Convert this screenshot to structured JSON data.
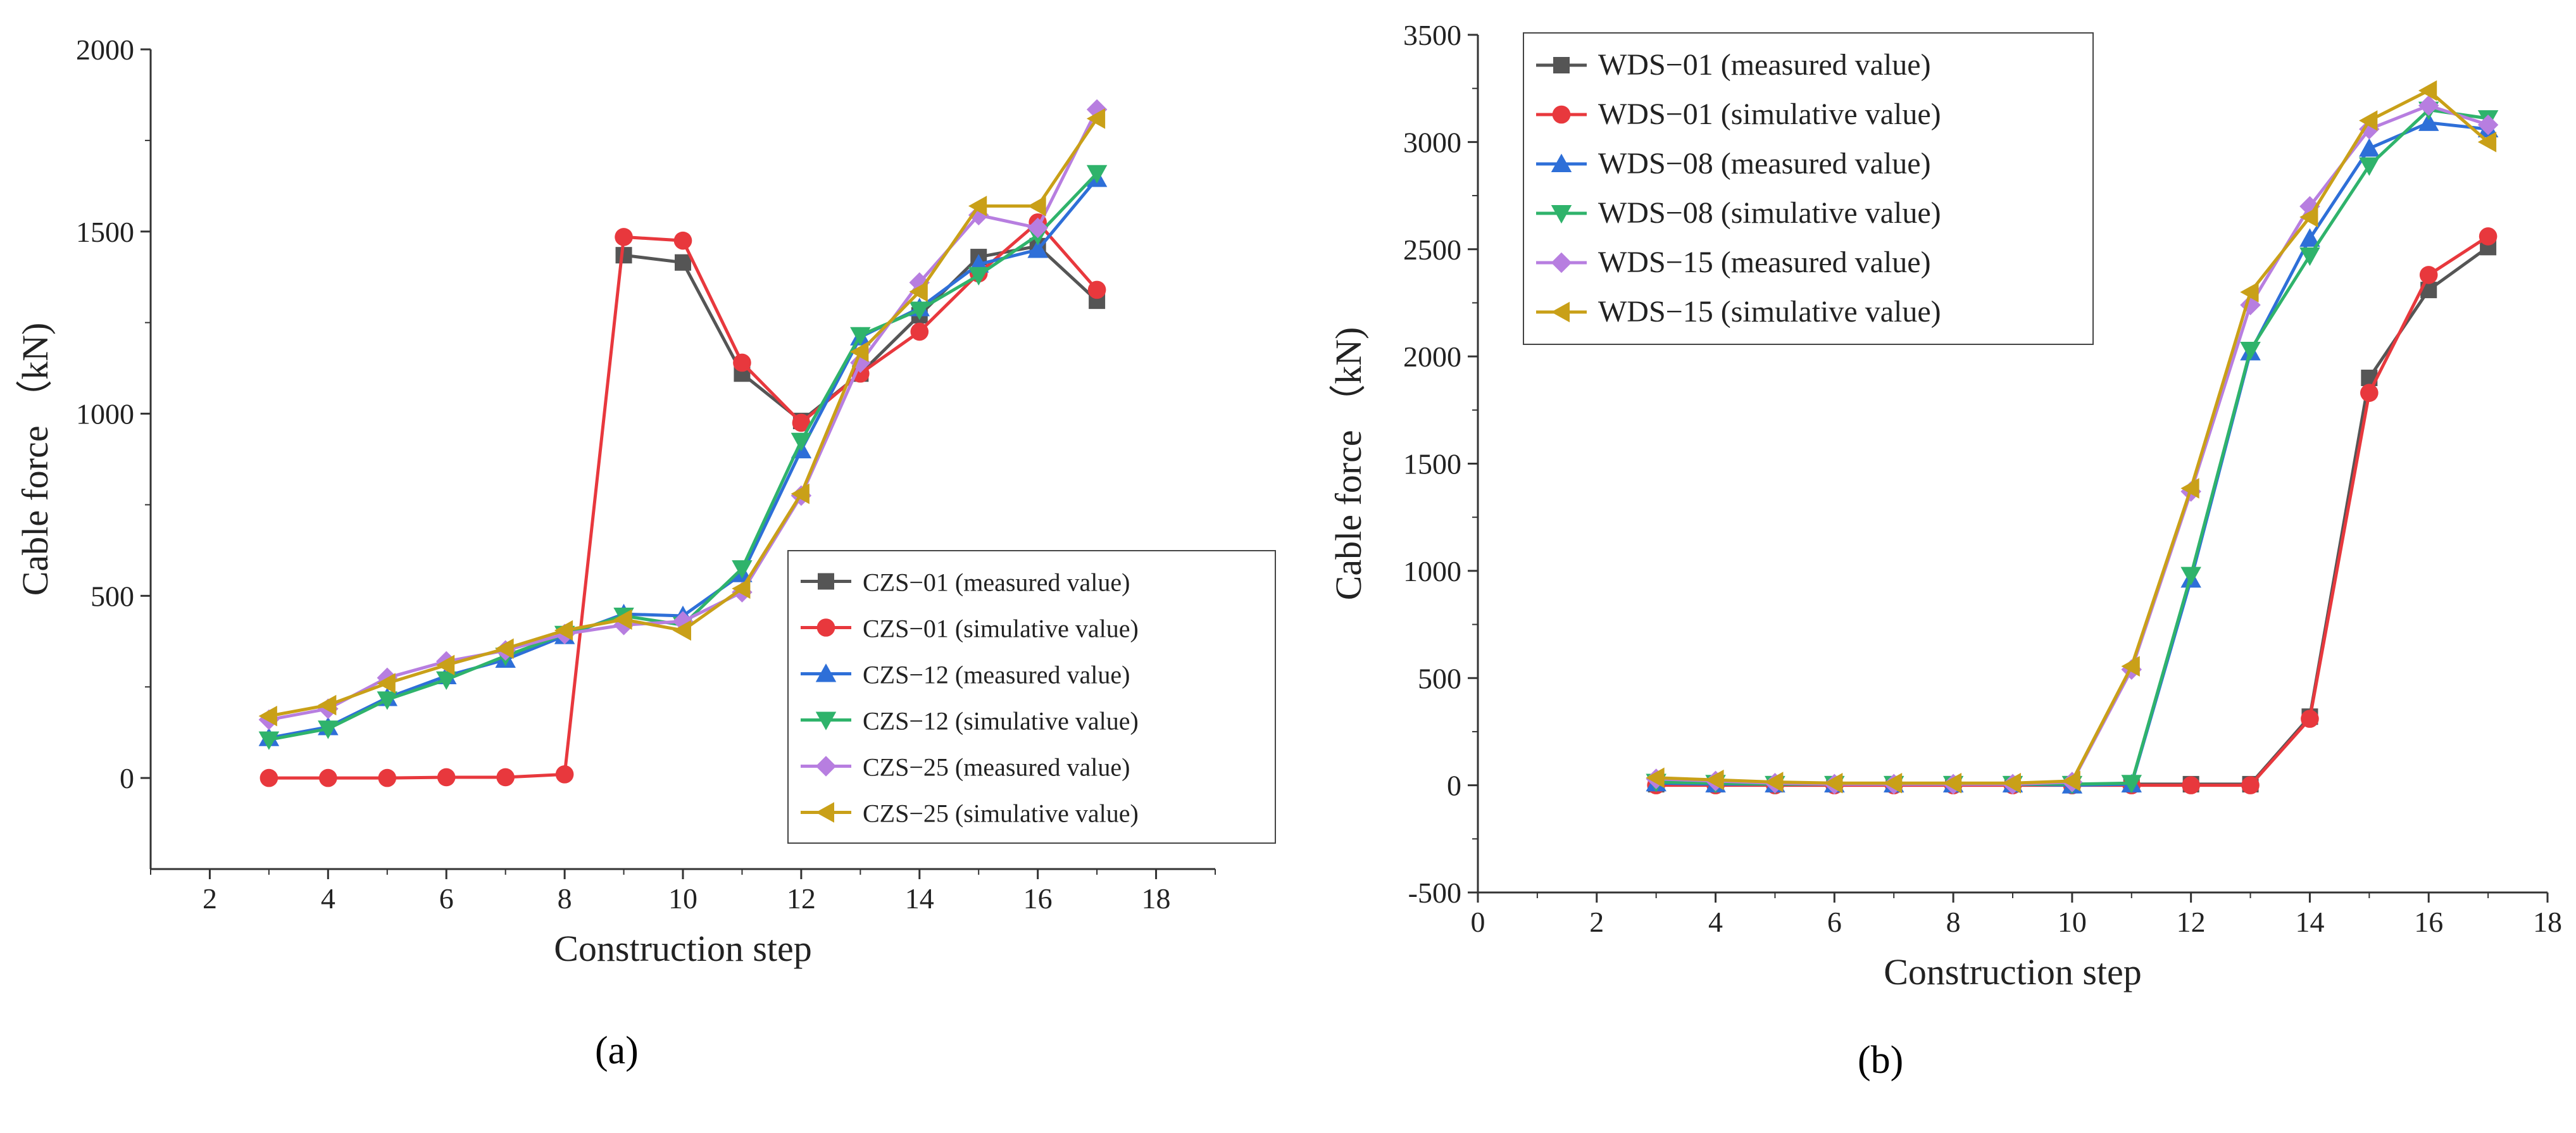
{
  "figure": {
    "panel_a_label": "(a)",
    "panel_b_label": "(b)"
  },
  "chart_data": [
    {
      "type": "line",
      "title": "",
      "xlabel": "Construction step",
      "ylabel": "Cable force （kN)",
      "xlim": [
        1,
        19
      ],
      "ylim": [
        -250,
        2000
      ],
      "xticks": [
        2,
        4,
        6,
        8,
        10,
        12,
        14,
        16,
        18
      ],
      "yticks": [
        0,
        500,
        1000,
        1500,
        2000
      ],
      "legend_position": "bottom-right",
      "series": [
        {
          "name": "CZS−01 (measured value)",
          "color": "#555555",
          "marker": "square",
          "x": [
            9,
            10,
            11,
            12,
            13,
            14,
            15,
            16,
            17
          ],
          "y": [
            1435,
            1415,
            1110,
            980,
            1110,
            1270,
            1430,
            1460,
            1310
          ]
        },
        {
          "name": "CZS−01 (simulative value)",
          "color": "#e8383d",
          "marker": "circle",
          "x": [
            3,
            4,
            5,
            6,
            7,
            8,
            9,
            10,
            11,
            12,
            13,
            14,
            15,
            16,
            17
          ],
          "y": [
            0,
            0,
            0,
            2,
            2,
            10,
            1485,
            1475,
            1140,
            975,
            1110,
            1225,
            1385,
            1525,
            1340
          ]
        },
        {
          "name": "CZS−12 (measured value)",
          "color": "#2e6fd8",
          "marker": "triangle-up",
          "x": [
            3,
            4,
            5,
            6,
            7,
            8,
            9,
            10,
            11,
            12,
            13,
            14,
            15,
            16,
            17
          ],
          "y": [
            110,
            140,
            220,
            280,
            325,
            390,
            450,
            445,
            560,
            900,
            1210,
            1290,
            1410,
            1450,
            1645
          ]
        },
        {
          "name": "CZS−12 (simulative value)",
          "color": "#2fb36b",
          "marker": "triangle-down",
          "x": [
            3,
            4,
            5,
            6,
            7,
            8,
            9,
            10,
            11,
            12,
            13,
            14,
            15,
            16,
            17
          ],
          "y": [
            105,
            135,
            215,
            270,
            335,
            395,
            445,
            420,
            575,
            925,
            1215,
            1285,
            1380,
            1490,
            1660
          ]
        },
        {
          "name": "CZS−25 (measured value)",
          "color": "#b77ee0",
          "marker": "diamond",
          "x": [
            3,
            4,
            5,
            6,
            7,
            8,
            9,
            10,
            11,
            12,
            13,
            14,
            15,
            16,
            17
          ],
          "y": [
            160,
            190,
            275,
            320,
            350,
            395,
            420,
            430,
            510,
            775,
            1140,
            1360,
            1545,
            1510,
            1835
          ]
        },
        {
          "name": "CZS−25 (simulative value)",
          "color": "#c9a018",
          "marker": "triangle-left",
          "x": [
            3,
            4,
            5,
            6,
            7,
            8,
            9,
            10,
            11,
            12,
            13,
            14,
            15,
            16,
            17
          ],
          "y": [
            170,
            200,
            260,
            310,
            355,
            405,
            435,
            405,
            520,
            780,
            1170,
            1335,
            1570,
            1570,
            1810
          ]
        }
      ]
    },
    {
      "type": "line",
      "title": "",
      "xlabel": "Construction step",
      "ylabel": "Cable force （kN)",
      "xlim": [
        0,
        18
      ],
      "ylim": [
        -500,
        3500
      ],
      "xticks": [
        0,
        2,
        4,
        6,
        8,
        10,
        12,
        14,
        16,
        18
      ],
      "yticks": [
        -500,
        0,
        500,
        1000,
        1500,
        2000,
        2500,
        3000,
        3500
      ],
      "legend_position": "top-left",
      "series": [
        {
          "name": "WDS−01 (measured value)",
          "color": "#555555",
          "marker": "square",
          "x": [
            3,
            4,
            5,
            6,
            7,
            8,
            9,
            10,
            11,
            12,
            13,
            14,
            15,
            16,
            17
          ],
          "y": [
            5,
            5,
            5,
            5,
            5,
            5,
            5,
            5,
            5,
            5,
            5,
            320,
            1900,
            2310,
            2510
          ]
        },
        {
          "name": "WDS−01 (simulative value)",
          "color": "#e8383d",
          "marker": "circle",
          "x": [
            3,
            4,
            5,
            6,
            7,
            8,
            9,
            10,
            11,
            12,
            13,
            14,
            15,
            16,
            17
          ],
          "y": [
            0,
            0,
            0,
            0,
            0,
            0,
            0,
            0,
            0,
            0,
            0,
            310,
            1830,
            2380,
            2560
          ]
        },
        {
          "name": "WDS−08 (measured value)",
          "color": "#2e6fd8",
          "marker": "triangle-up",
          "x": [
            3,
            4,
            5,
            6,
            7,
            8,
            9,
            10,
            11,
            12,
            13,
            14,
            15,
            16,
            17
          ],
          "y": [
            10,
            5,
            5,
            5,
            5,
            5,
            5,
            0,
            5,
            960,
            2020,
            2550,
            2970,
            3090,
            3060
          ]
        },
        {
          "name": "WDS−08 (simulative value)",
          "color": "#2fb36b",
          "marker": "triangle-down",
          "x": [
            3,
            4,
            5,
            6,
            7,
            8,
            9,
            10,
            11,
            12,
            13,
            14,
            15,
            16,
            17
          ],
          "y": [
            15,
            10,
            5,
            5,
            5,
            5,
            5,
            5,
            10,
            980,
            2030,
            2470,
            2890,
            3150,
            3110
          ]
        },
        {
          "name": "WDS−15 (measured value)",
          "color": "#b77ee0",
          "marker": "diamond",
          "x": [
            3,
            4,
            5,
            6,
            7,
            8,
            9,
            10,
            11,
            12,
            13,
            14,
            15,
            16,
            17
          ],
          "y": [
            30,
            20,
            10,
            5,
            5,
            5,
            5,
            15,
            540,
            1370,
            2240,
            2700,
            3060,
            3170,
            3080
          ]
        },
        {
          "name": "WDS−15 (simulative value)",
          "color": "#c9a018",
          "marker": "triangle-left",
          "x": [
            3,
            4,
            5,
            6,
            7,
            8,
            9,
            10,
            11,
            12,
            13,
            14,
            15,
            16,
            17
          ],
          "y": [
            35,
            25,
            15,
            10,
            10,
            10,
            10,
            20,
            555,
            1385,
            2300,
            2650,
            3100,
            3240,
            3000
          ]
        }
      ]
    }
  ]
}
